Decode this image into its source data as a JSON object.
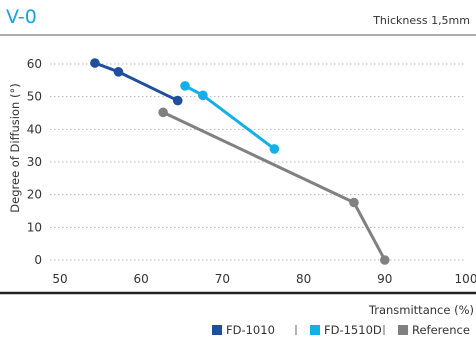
{
  "chart_data": {
    "type": "line",
    "title": "V-0",
    "subtitle": "Thickness 1,5mm",
    "xlabel": "Transmittance  (%)",
    "ylabel": "Degree of Diffusion (°)",
    "xlim": [
      50,
      100
    ],
    "ylim": [
      0,
      60
    ],
    "xticks": [
      50,
      60,
      70,
      80,
      90,
      100
    ],
    "yticks": [
      0,
      10,
      20,
      30,
      40,
      50,
      60
    ],
    "grid": "horizontal-dotted",
    "legend_position": "bottom-right",
    "series": [
      {
        "name": "FD-1010",
        "color": "#1f4e9c",
        "x": [
          54.3,
          57.2,
          64.5
        ],
        "y": [
          60.3,
          57.6,
          48.8
        ]
      },
      {
        "name": "FD-1510D",
        "color": "#14aee8",
        "x": [
          65.4,
          67.6,
          76.4
        ],
        "y": [
          53.3,
          50.4,
          34.0
        ]
      },
      {
        "name": "Reference",
        "color": "#808080",
        "x": [
          62.7,
          86.2,
          90.0
        ],
        "y": [
          45.2,
          17.6,
          0.0
        ]
      }
    ]
  }
}
